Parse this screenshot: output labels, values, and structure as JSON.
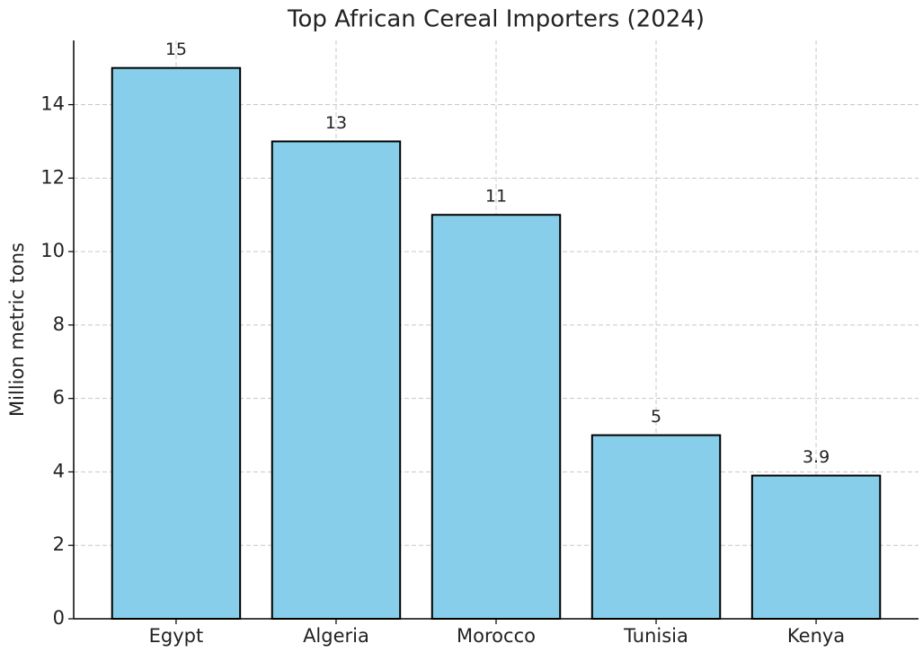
{
  "chart_data": {
    "type": "bar",
    "title": "Top African Cereal Importers (2024)",
    "y_label": "Million metric tons",
    "categories": [
      "Egypt",
      "Algeria",
      "Morocco",
      "Tunisia",
      "Kenya"
    ],
    "values": [
      15,
      13,
      11,
      5,
      3.9
    ],
    "color": "#87ceeb",
    "ylim": [
      0,
      15.75
    ],
    "yticks": [
      0,
      2,
      4,
      6,
      8,
      10,
      12,
      14
    ],
    "grid": true
  }
}
